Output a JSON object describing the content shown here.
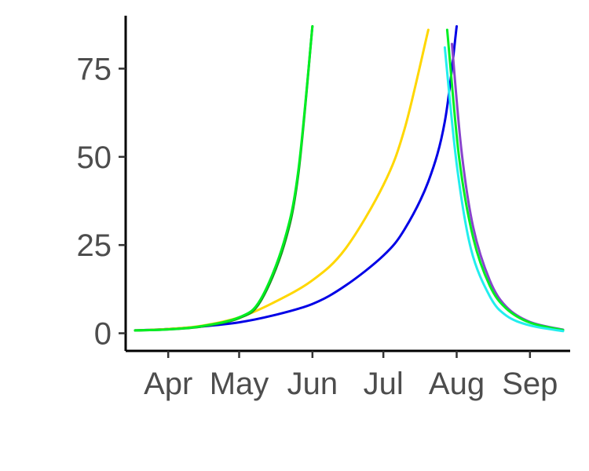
{
  "chart_data": {
    "type": "line",
    "title": "",
    "xlabel": "",
    "ylabel": "",
    "legend": "none",
    "grid": false,
    "x_axis": {
      "type": "date",
      "range": [
        "2021-03-14",
        "2021-09-18"
      ],
      "ticks": [
        {
          "date": "2021-04-01",
          "label": "Apr"
        },
        {
          "date": "2021-05-01",
          "label": "May"
        },
        {
          "date": "2021-06-01",
          "label": "Jun"
        },
        {
          "date": "2021-07-01",
          "label": "Jul"
        },
        {
          "date": "2021-08-01",
          "label": "Aug"
        },
        {
          "date": "2021-09-01",
          "label": "Sep"
        }
      ]
    },
    "y_axis": {
      "range": [
        -5,
        90
      ],
      "ticks": [
        {
          "value": 0,
          "label": "0"
        },
        {
          "value": 25,
          "label": "25"
        },
        {
          "value": 50,
          "label": "50"
        },
        {
          "value": 75,
          "label": "75"
        }
      ]
    },
    "series": [
      {
        "color": "#0000e6",
        "points": [
          [
            "2021-03-18",
            0.8
          ],
          [
            "2021-04-01",
            1.2
          ],
          [
            "2021-04-15",
            1.9
          ],
          [
            "2021-05-01",
            3.1
          ],
          [
            "2021-05-15",
            5.0
          ],
          [
            "2021-06-01",
            8.3
          ],
          [
            "2021-06-15",
            13.5
          ],
          [
            "2021-07-01",
            22.0
          ],
          [
            "2021-07-10",
            29.5
          ],
          [
            "2021-07-20",
            43.0
          ],
          [
            "2021-07-27",
            60.0
          ],
          [
            "2021-08-01",
            87.0
          ]
        ]
      },
      {
        "color": "#ffd700",
        "points": [
          [
            "2021-03-18",
            0.8
          ],
          [
            "2021-04-01",
            1.2
          ],
          [
            "2021-04-15",
            2.1
          ],
          [
            "2021-05-01",
            4.5
          ],
          [
            "2021-05-15",
            8.5
          ],
          [
            "2021-06-01",
            15.0
          ],
          [
            "2021-06-15",
            24.0
          ],
          [
            "2021-07-01",
            42.0
          ],
          [
            "2021-07-10",
            58.0
          ],
          [
            "2021-07-20",
            86.0
          ]
        ]
      },
      {
        "color": "#1e8c1e",
        "points": [
          [
            "2021-03-18",
            0.8
          ],
          [
            "2021-04-01",
            1.1
          ],
          [
            "2021-04-15",
            1.9
          ],
          [
            "2021-05-01",
            4.3
          ],
          [
            "2021-05-10",
            9.0
          ],
          [
            "2021-05-20",
            25.0
          ],
          [
            "2021-05-26",
            45.0
          ],
          [
            "2021-06-01",
            87.0
          ]
        ]
      },
      {
        "color": "#00ee22",
        "points": [
          [
            "2021-03-18",
            0.8
          ],
          [
            "2021-04-01",
            1.1
          ],
          [
            "2021-04-15",
            2.0
          ],
          [
            "2021-05-01",
            4.5
          ],
          [
            "2021-05-10",
            9.5
          ],
          [
            "2021-05-20",
            26.0
          ],
          [
            "2021-05-26",
            46.0
          ],
          [
            "2021-06-01",
            87.0
          ]
        ]
      },
      {
        "color": "#8844cc",
        "points": [
          [
            "2021-07-30",
            82.0
          ],
          [
            "2021-08-03",
            52.0
          ],
          [
            "2021-08-08",
            30.0
          ],
          [
            "2021-08-15",
            15.0
          ],
          [
            "2021-08-22",
            7.5
          ],
          [
            "2021-09-01",
            3.2
          ],
          [
            "2021-09-15",
            1.0
          ]
        ]
      },
      {
        "color": "#00ee22",
        "points": [
          [
            "2021-07-28",
            86.0
          ],
          [
            "2021-08-02",
            50.0
          ],
          [
            "2021-08-08",
            27.0
          ],
          [
            "2021-08-15",
            13.5
          ],
          [
            "2021-08-22",
            7.0
          ],
          [
            "2021-09-01",
            3.0
          ],
          [
            "2021-09-15",
            0.9
          ]
        ]
      },
      {
        "color": "#22eeee",
        "points": [
          [
            "2021-07-27",
            81.0
          ],
          [
            "2021-08-01",
            48.0
          ],
          [
            "2021-08-07",
            24.0
          ],
          [
            "2021-08-15",
            10.5
          ],
          [
            "2021-08-22",
            5.0
          ],
          [
            "2021-09-01",
            2.2
          ],
          [
            "2021-09-15",
            0.6
          ]
        ]
      }
    ]
  }
}
